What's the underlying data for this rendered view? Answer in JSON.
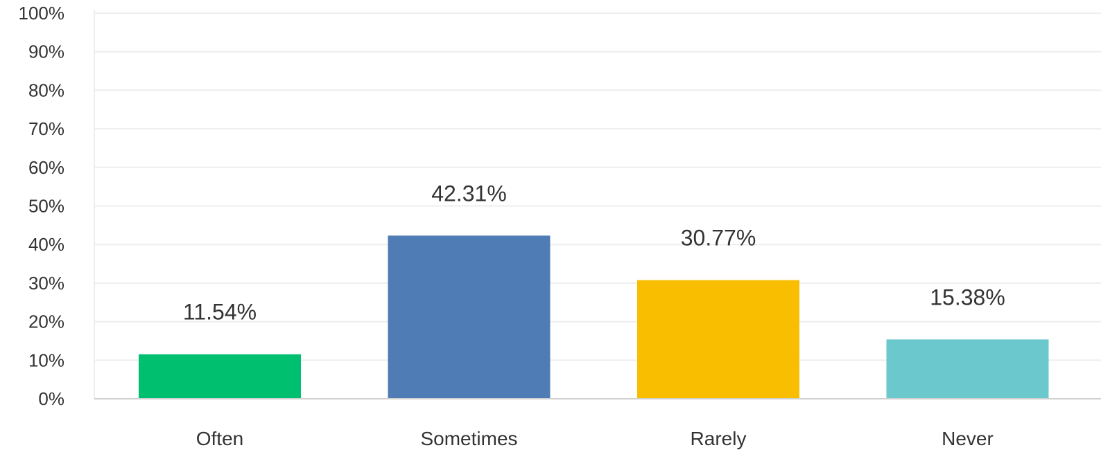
{
  "chart_data": {
    "type": "bar",
    "categories": [
      "Often",
      "Sometimes",
      "Rarely",
      "Never"
    ],
    "values": [
      11.54,
      42.31,
      30.77,
      15.38
    ],
    "data_labels": [
      "11.54%",
      "42.31%",
      "30.77%",
      "15.38%"
    ],
    "colors": [
      "#00bf6f",
      "#507cb6",
      "#f9be00",
      "#6bc8cd"
    ],
    "ylim": [
      0,
      100
    ],
    "yticks": [
      0,
      10,
      20,
      30,
      40,
      50,
      60,
      70,
      80,
      90,
      100
    ],
    "ytick_labels": [
      "0%",
      "10%",
      "20%",
      "30%",
      "40%",
      "50%",
      "60%",
      "70%",
      "80%",
      "90%",
      "100%"
    ],
    "grid": true,
    "title": "",
    "xlabel": "",
    "ylabel": ""
  }
}
